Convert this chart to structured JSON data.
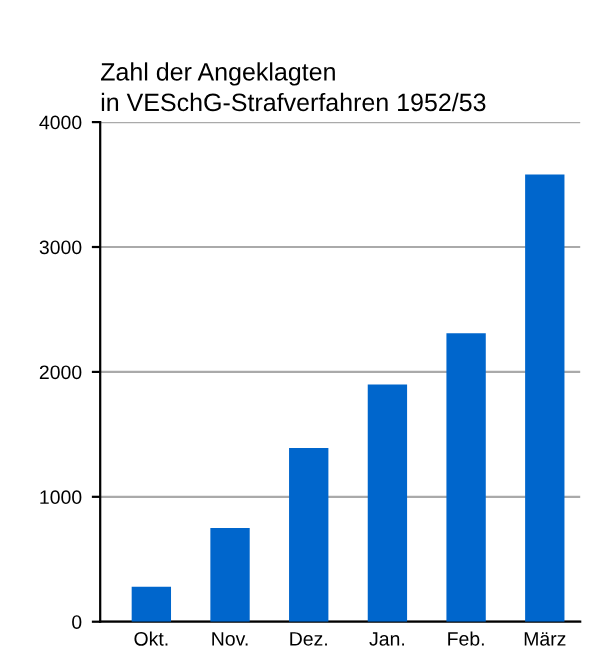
{
  "chart_data": {
    "type": "bar",
    "title": "Zahl der Angeklagten\nin VESchG-Strafverfahren 1952/53",
    "categories": [
      "Okt.",
      "Nov.",
      "Dez.",
      "Jan.",
      "Feb.",
      "März"
    ],
    "values": [
      280,
      750,
      1390,
      1900,
      2310,
      3580
    ],
    "color": "#0066cc",
    "ylim": [
      0,
      4000
    ],
    "yticks": [
      0,
      1000,
      2000,
      3000,
      4000
    ],
    "grid": "y"
  }
}
